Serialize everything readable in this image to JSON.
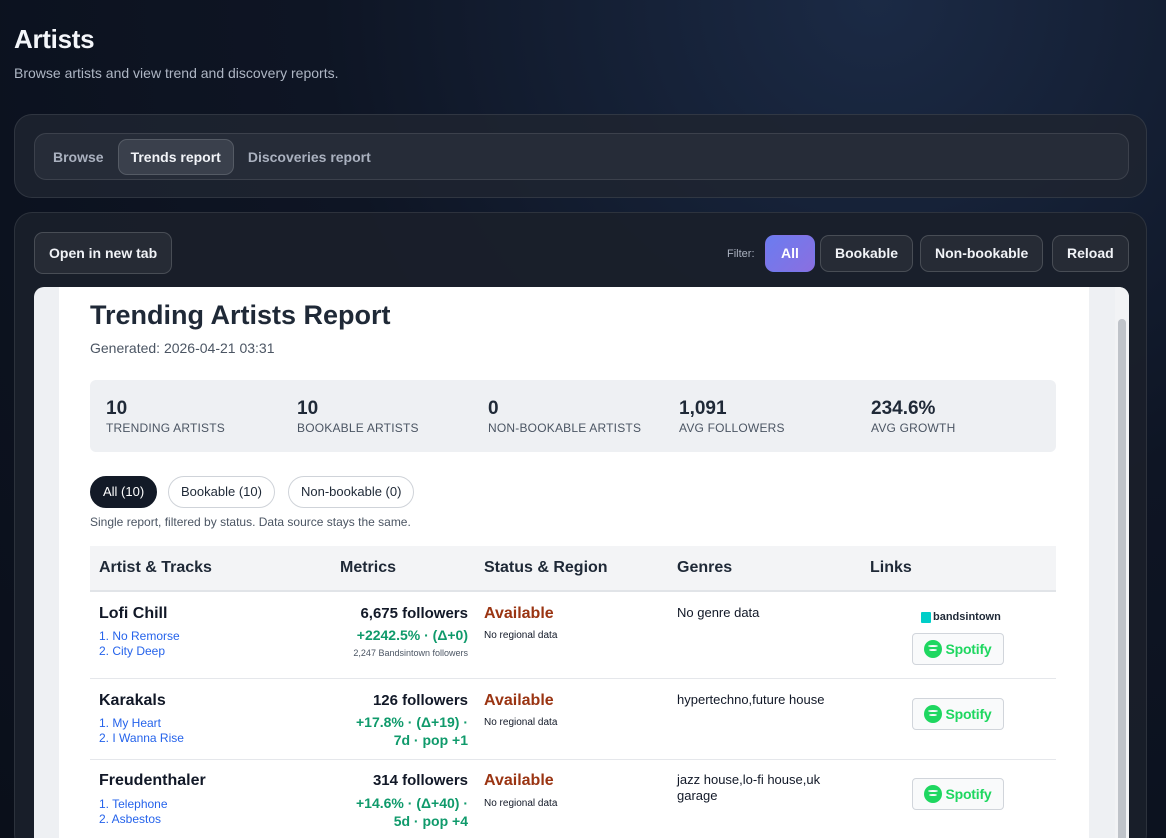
{
  "header": {
    "title": "Artists",
    "subtitle": "Browse artists and view trend and discovery reports."
  },
  "tabs": [
    {
      "label": "Browse",
      "active": false
    },
    {
      "label": "Trends report",
      "active": true
    },
    {
      "label": "Discoveries report",
      "active": false
    }
  ],
  "toolbar": {
    "open_new_tab": "Open in new tab",
    "filter_label": "Filter:",
    "filter_all": "All",
    "filter_bookable": "Bookable",
    "filter_non_bookable": "Non-bookable",
    "reload": "Reload",
    "accent_color": "#7a75ea"
  },
  "report": {
    "title": "Trending Artists Report",
    "generated": "Generated: 2026-04-21 03:31",
    "stats": [
      {
        "value": "10",
        "label": "TRENDING ARTISTS"
      },
      {
        "value": "10",
        "label": "BOOKABLE ARTISTS"
      },
      {
        "value": "0",
        "label": "NON-BOOKABLE ARTISTS"
      },
      {
        "value": "1,091",
        "label": "AVG FOLLOWERS"
      },
      {
        "value": "234.6%",
        "label": "AVG GROWTH"
      }
    ],
    "pills": [
      {
        "label": "All (10)",
        "active": true
      },
      {
        "label": "Bookable (10)",
        "active": false
      },
      {
        "label": "Non-bookable (0)",
        "active": false
      }
    ],
    "pills_note": "Single report, filtered by status. Data source stays the same.",
    "columns": [
      "Artist & Tracks",
      "Metrics",
      "Status & Region",
      "Genres",
      "Links"
    ],
    "rows": [
      {
        "artist": "Lofi Chill",
        "tracks": [
          "1. No Remorse",
          "2. City Deep"
        ],
        "followers": "6,675 followers",
        "growth_line1": "+2242.5% · (Δ+0)",
        "growth_line2": "",
        "bandsintown_followers": "2,247 Bandsintown followers",
        "status": "Available",
        "region": "No regional data",
        "genres": "No genre data",
        "links": {
          "bandsintown": "bandsintown",
          "spotify": "Spotify"
        }
      },
      {
        "artist": "Karakals",
        "tracks": [
          "1. My Heart",
          "2. I Wanna Rise"
        ],
        "followers": "126 followers",
        "growth_line1": "+17.8% · (Δ+19) ·",
        "growth_line2": "7d · pop +1",
        "status": "Available",
        "region": "No regional data",
        "genres": "hypertechno,future house",
        "links": {
          "spotify": "Spotify"
        }
      },
      {
        "artist": "Freudenthaler",
        "tracks": [
          "1. Telephone",
          "2. Asbestos"
        ],
        "followers": "314 followers",
        "growth_line1": "+14.6% · (Δ+40) ·",
        "growth_line2": "5d · pop +4",
        "status": "Available",
        "region": "No regional data",
        "genres": "jazz house,lo-fi house,uk garage",
        "links": {
          "spotify": "Spotify"
        }
      }
    ]
  }
}
